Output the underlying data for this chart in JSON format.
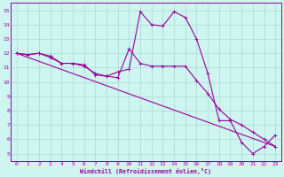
{
  "xlabel": "Windchill (Refroidissement éolien,°C)",
  "background_color": "#cef5f0",
  "line_color": "#990099",
  "grid_color": "#b0ddd8",
  "xlim": [
    -0.5,
    23.5
  ],
  "ylim": [
    4.5,
    15.5
  ],
  "xticks": [
    0,
    1,
    2,
    3,
    4,
    5,
    6,
    7,
    8,
    9,
    10,
    11,
    12,
    13,
    14,
    15,
    16,
    17,
    18,
    19,
    20,
    21,
    22,
    23
  ],
  "yticks": [
    5,
    6,
    7,
    8,
    9,
    10,
    11,
    12,
    13,
    14,
    15
  ],
  "line1_x": [
    0,
    1,
    2,
    3,
    4,
    5,
    6,
    7,
    8,
    9,
    10,
    11,
    12,
    13,
    14,
    15,
    16,
    17,
    18,
    19,
    20,
    21,
    22,
    23
  ],
  "line1_y": [
    12.0,
    11.9,
    12.0,
    11.7,
    11.3,
    11.3,
    11.1,
    10.6,
    10.4,
    10.3,
    12.3,
    11.3,
    11.1,
    11.1,
    11.1,
    11.1,
    10.1,
    9.2,
    8.1,
    7.4,
    7.0,
    6.5,
    6.0,
    5.5
  ],
  "line2_x": [
    0,
    1,
    2,
    3,
    4,
    5,
    6,
    7,
    8,
    9,
    10,
    11,
    12,
    13,
    14,
    15,
    16,
    17,
    18,
    19,
    20,
    21,
    22,
    23
  ],
  "line2_y": [
    12.0,
    11.9,
    12.0,
    11.8,
    11.3,
    11.3,
    11.2,
    10.5,
    10.4,
    10.7,
    10.9,
    14.9,
    14.0,
    13.9,
    14.9,
    14.5,
    13.0,
    10.6,
    7.3,
    7.3,
    5.8,
    5.0,
    5.5,
    6.3
  ],
  "line3_x": [
    0,
    23
  ],
  "line3_y": [
    12.0,
    5.5
  ]
}
